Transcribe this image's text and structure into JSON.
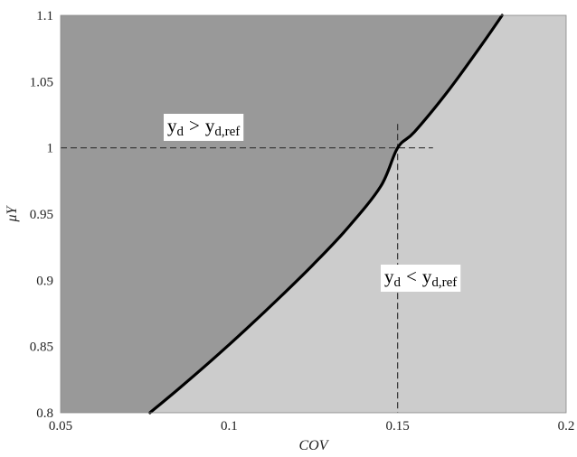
{
  "chart_data": {
    "type": "area",
    "title": "",
    "xlabel": "COV",
    "ylabel": "μY",
    "xlim": [
      0.05,
      0.2
    ],
    "ylim": [
      0.8,
      1.1
    ],
    "x_ticks": [
      "0.05",
      "0.1",
      "0.15",
      "0.2"
    ],
    "y_ticks": [
      "0.8",
      "0.85",
      "0.9",
      "0.95",
      "1",
      "1.05",
      "1.1"
    ],
    "grid": false,
    "boundary_curve": {
      "x": [
        0.0765,
        0.085,
        0.095,
        0.105,
        0.115,
        0.125,
        0.135,
        0.145,
        0.15,
        0.155,
        0.165,
        0.175,
        0.181
      ],
      "y": [
        0.8,
        0.818,
        0.84,
        0.863,
        0.887,
        0.912,
        0.939,
        0.971,
        1.0,
        1.012,
        1.043,
        1.078,
        1.1
      ]
    },
    "reference_lines": {
      "x": 0.15,
      "y": 1.0
    },
    "regions": {
      "upper": {
        "label_main": "y",
        "label_sub": "d",
        "label_op": ">",
        "label_rhs": "y",
        "label_rhs_sub": "d,ref",
        "color": "#999999"
      },
      "lower": {
        "label_main": "y",
        "label_sub": "d",
        "label_op": "<",
        "label_rhs": "y",
        "label_rhs_sub": "d,ref",
        "color": "#cccccc"
      }
    },
    "curve_color": "#000000"
  }
}
